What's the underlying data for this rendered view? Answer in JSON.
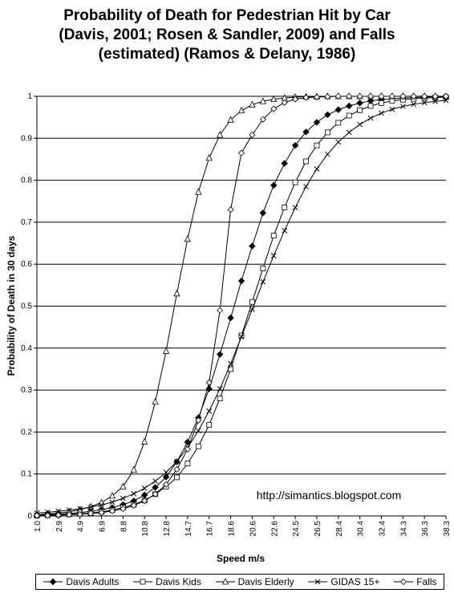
{
  "chart_data": {
    "type": "line",
    "title": "Probability of Death for Pedestrian Hit by Car (Davis, 2001; Rosen & Sandler, 2009) and Falls (estimated) (Ramos & Delany, 1986)",
    "title_lines": [
      "Probability of Death for Pedestrian Hit by Car",
      "(Davis, 2001; Rosen & Sandler, 2009) and Falls",
      "(estimated) (Ramos & Delany, 1986)"
    ],
    "xlabel": "Speed m/s",
    "ylabel": "Probability of Death in 30 days",
    "ylim": [
      0,
      1
    ],
    "yticks": [
      "0",
      "0.1",
      "0.2",
      "0.3",
      "0.4",
      "0.5",
      "0.6",
      "0.7",
      "0.8",
      "0.9",
      "1"
    ],
    "xtick_labels": [
      "1.0",
      "2.9",
      "4.9",
      "6.9",
      "8.8",
      "10.8",
      "12.8",
      "14.7",
      "16.7",
      "18.6",
      "20.6",
      "22.6",
      "24.5",
      "26.5",
      "28.4",
      "30.4",
      "32.4",
      "34.3",
      "36.3",
      "38.3"
    ],
    "grid": "horizontal",
    "annotation": "http://simantics.blogspot.com",
    "x": [
      1.0,
      2.0,
      2.9,
      3.9,
      4.9,
      5.9,
      6.9,
      7.8,
      8.8,
      9.8,
      10.8,
      11.8,
      12.8,
      13.7,
      14.7,
      15.7,
      16.7,
      17.7,
      18.6,
      19.6,
      20.6,
      21.6,
      22.6,
      23.5,
      24.5,
      25.5,
      26.5,
      27.5,
      28.4,
      29.4,
      30.4,
      31.4,
      32.4,
      33.3,
      34.3,
      35.3,
      36.3,
      37.3,
      38.3
    ],
    "series": [
      {
        "name": "Davis Adults",
        "marker": "filled-diamond",
        "values": [
          0.002,
          0.003,
          0.004,
          0.006,
          0.008,
          0.011,
          0.015,
          0.02,
          0.027,
          0.036,
          0.05,
          0.068,
          0.093,
          0.129,
          0.176,
          0.234,
          0.303,
          0.385,
          0.472,
          0.56,
          0.643,
          0.722,
          0.788,
          0.84,
          0.883,
          0.915,
          0.938,
          0.956,
          0.968,
          0.977,
          0.984,
          0.989,
          0.992,
          0.994,
          0.996,
          0.997,
          0.998,
          0.999,
          0.999
        ]
      },
      {
        "name": "Davis Kids",
        "marker": "open-square",
        "values": [
          0.001,
          0.002,
          0.003,
          0.004,
          0.005,
          0.007,
          0.01,
          0.014,
          0.02,
          0.027,
          0.037,
          0.052,
          0.07,
          0.092,
          0.125,
          0.166,
          0.217,
          0.28,
          0.35,
          0.43,
          0.51,
          0.59,
          0.668,
          0.735,
          0.795,
          0.845,
          0.883,
          0.914,
          0.937,
          0.954,
          0.967,
          0.977,
          0.984,
          0.989,
          0.992,
          0.994,
          0.996,
          0.997,
          0.998
        ]
      },
      {
        "name": "Davis Elderly",
        "marker": "open-triangle",
        "values": [
          0.003,
          0.005,
          0.007,
          0.01,
          0.015,
          0.022,
          0.032,
          0.048,
          0.07,
          0.11,
          0.177,
          0.272,
          0.393,
          0.53,
          0.66,
          0.772,
          0.853,
          0.908,
          0.944,
          0.966,
          0.98,
          0.988,
          0.993,
          0.996,
          0.998,
          0.999,
          0.999,
          1.0,
          1.0,
          1.0,
          1.0,
          1.0,
          1.0,
          1.0,
          1.0,
          1.0,
          1.0,
          1.0,
          1.0
        ]
      },
      {
        "name": "GIDAS 15+",
        "marker": "x-cross",
        "values": [
          0.007,
          0.009,
          0.011,
          0.014,
          0.017,
          0.021,
          0.026,
          0.033,
          0.042,
          0.053,
          0.066,
          0.083,
          0.104,
          0.13,
          0.163,
          0.203,
          0.25,
          0.303,
          0.363,
          0.427,
          0.492,
          0.558,
          0.62,
          0.68,
          0.735,
          0.785,
          0.827,
          0.862,
          0.891,
          0.914,
          0.933,
          0.948,
          0.96,
          0.969,
          0.976,
          0.981,
          0.985,
          0.988,
          0.99
        ]
      },
      {
        "name": "Falls",
        "marker": "open-diamond",
        "values": [
          0.001,
          0.001,
          0.002,
          0.003,
          0.004,
          0.006,
          0.008,
          0.012,
          0.017,
          0.025,
          0.036,
          0.052,
          0.075,
          0.111,
          0.159,
          0.228,
          0.318,
          0.49,
          0.73,
          0.865,
          0.908,
          0.945,
          0.97,
          0.985,
          0.993,
          0.997,
          0.998,
          0.999,
          1.0,
          1.0,
          1.0,
          1.0,
          1.0,
          1.0,
          1.0,
          1.0,
          1.0,
          1.0,
          1.0
        ]
      }
    ],
    "legend_position": "bottom"
  }
}
